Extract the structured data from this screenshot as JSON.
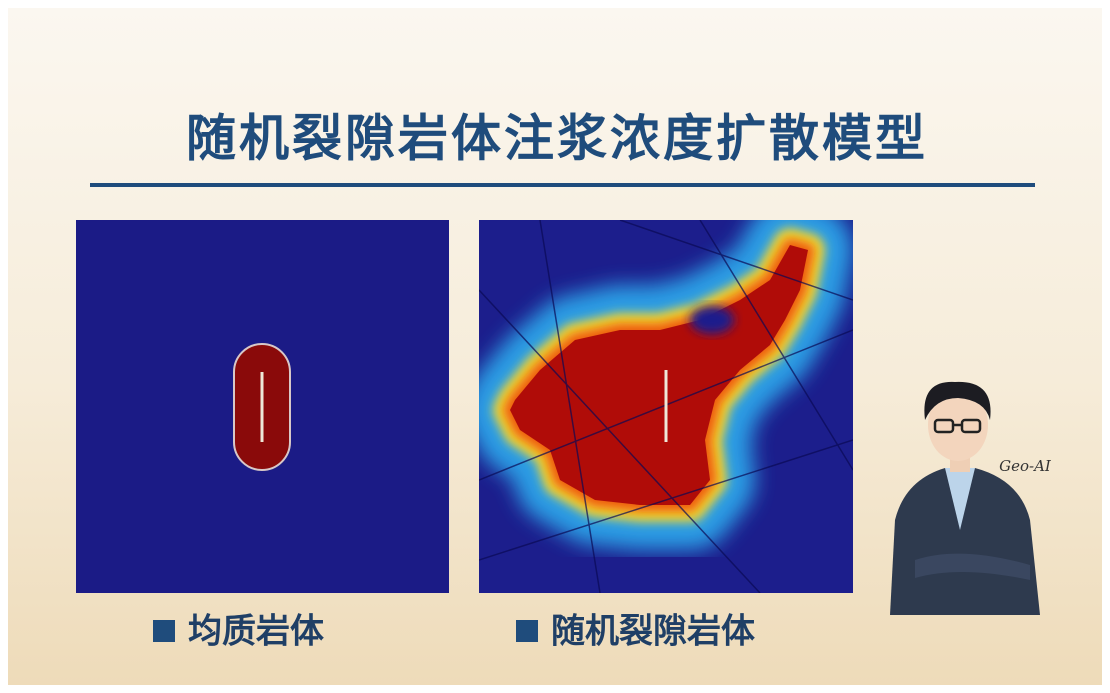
{
  "title": "随机裂隙岩体注浆浓度扩散模型",
  "panels": [
    {
      "label": "均质岩体"
    },
    {
      "label": "随机裂隙岩体"
    }
  ],
  "avatar": {
    "signature": "Geo-AI"
  }
}
